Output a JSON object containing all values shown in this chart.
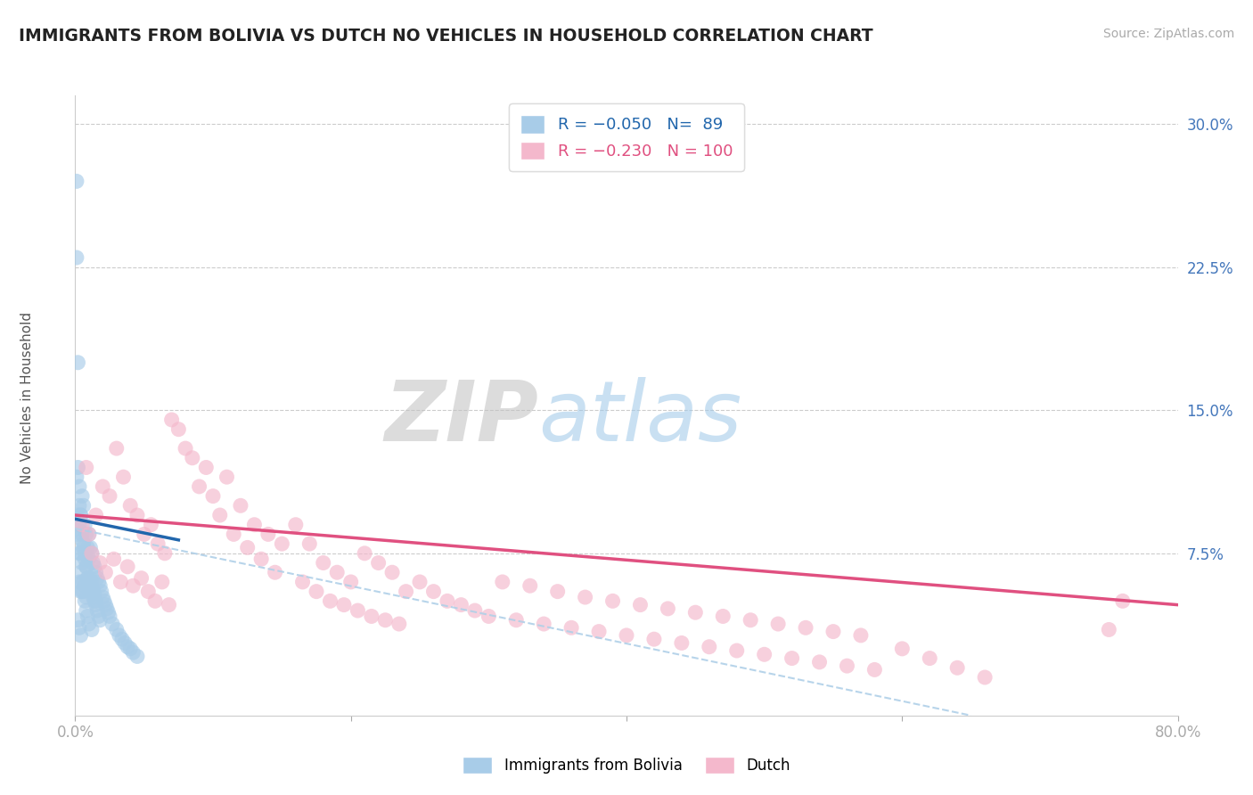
{
  "title": "IMMIGRANTS FROM BOLIVIA VS DUTCH NO VEHICLES IN HOUSEHOLD CORRELATION CHART",
  "source_text": "Source: ZipAtlas.com",
  "ylabel_label": "No Vehicles in Household",
  "ytick_labels": [
    "30.0%",
    "22.5%",
    "15.0%",
    "7.5%"
  ],
  "ytick_values": [
    0.3,
    0.225,
    0.15,
    0.075
  ],
  "xmin": 0.0,
  "xmax": 0.8,
  "ymin": -0.01,
  "ymax": 0.315,
  "legend_r1": "R = −0.050",
  "legend_n1": "N=  89",
  "legend_r2": "R = −0.230",
  "legend_n2": "N = 100",
  "color_blue": "#a8cce8",
  "color_pink": "#f4b8cc",
  "color_blue_line": "#2166ac",
  "color_pink_line": "#e05080",
  "color_blue_dashed": "#b0d0e8",
  "watermark_zip": "ZIP",
  "watermark_atlas": "atlas",
  "bolivia_x": [
    0.001,
    0.002,
    0.002,
    0.003,
    0.003,
    0.003,
    0.004,
    0.004,
    0.004,
    0.005,
    0.005,
    0.005,
    0.005,
    0.006,
    0.006,
    0.006,
    0.007,
    0.007,
    0.007,
    0.008,
    0.008,
    0.008,
    0.009,
    0.009,
    0.01,
    0.01,
    0.01,
    0.011,
    0.011,
    0.012,
    0.012,
    0.013,
    0.013,
    0.014,
    0.014,
    0.015,
    0.015,
    0.016,
    0.017,
    0.018,
    0.019,
    0.02,
    0.021,
    0.022,
    0.023,
    0.024,
    0.025,
    0.027,
    0.03,
    0.032,
    0.034,
    0.036,
    0.038,
    0.04,
    0.042,
    0.045,
    0.001,
    0.002,
    0.003,
    0.004,
    0.005,
    0.006,
    0.007,
    0.008,
    0.009,
    0.01,
    0.011,
    0.012,
    0.013,
    0.014,
    0.015,
    0.016,
    0.017,
    0.018,
    0.002,
    0.003,
    0.004,
    0.001,
    0.001,
    0.002,
    0.003,
    0.004,
    0.005,
    0.006,
    0.007,
    0.008,
    0.009,
    0.01,
    0.012
  ],
  "bolivia_y": [
    0.27,
    0.175,
    0.085,
    0.1,
    0.09,
    0.06,
    0.095,
    0.075,
    0.055,
    0.105,
    0.085,
    0.07,
    0.055,
    0.1,
    0.08,
    0.06,
    0.09,
    0.075,
    0.058,
    0.085,
    0.068,
    0.052,
    0.078,
    0.062,
    0.085,
    0.072,
    0.058,
    0.078,
    0.062,
    0.075,
    0.06,
    0.07,
    0.056,
    0.068,
    0.054,
    0.065,
    0.05,
    0.062,
    0.06,
    0.058,
    0.055,
    0.052,
    0.05,
    0.048,
    0.046,
    0.044,
    0.042,
    0.038,
    0.035,
    0.032,
    0.03,
    0.028,
    0.026,
    0.025,
    0.023,
    0.021,
    0.23,
    0.12,
    0.11,
    0.095,
    0.082,
    0.078,
    0.072,
    0.068,
    0.062,
    0.06,
    0.058,
    0.055,
    0.052,
    0.05,
    0.048,
    0.045,
    0.042,
    0.04,
    0.04,
    0.036,
    0.032,
    0.115,
    0.095,
    0.088,
    0.075,
    0.065,
    0.06,
    0.055,
    0.05,
    0.045,
    0.042,
    0.038,
    0.035
  ],
  "dutch_x": [
    0.005,
    0.008,
    0.01,
    0.012,
    0.015,
    0.018,
    0.02,
    0.022,
    0.025,
    0.028,
    0.03,
    0.033,
    0.035,
    0.038,
    0.04,
    0.042,
    0.045,
    0.048,
    0.05,
    0.053,
    0.055,
    0.058,
    0.06,
    0.063,
    0.065,
    0.068,
    0.07,
    0.075,
    0.08,
    0.085,
    0.09,
    0.095,
    0.1,
    0.105,
    0.11,
    0.115,
    0.12,
    0.125,
    0.13,
    0.135,
    0.14,
    0.145,
    0.15,
    0.16,
    0.165,
    0.17,
    0.175,
    0.18,
    0.185,
    0.19,
    0.195,
    0.2,
    0.205,
    0.21,
    0.215,
    0.22,
    0.225,
    0.23,
    0.235,
    0.24,
    0.25,
    0.26,
    0.27,
    0.28,
    0.29,
    0.3,
    0.31,
    0.32,
    0.33,
    0.34,
    0.35,
    0.36,
    0.37,
    0.38,
    0.39,
    0.4,
    0.41,
    0.42,
    0.43,
    0.44,
    0.45,
    0.46,
    0.47,
    0.48,
    0.49,
    0.5,
    0.51,
    0.52,
    0.53,
    0.54,
    0.55,
    0.56,
    0.57,
    0.58,
    0.6,
    0.62,
    0.64,
    0.66,
    0.75,
    0.76
  ],
  "dutch_y": [
    0.09,
    0.12,
    0.085,
    0.075,
    0.095,
    0.07,
    0.11,
    0.065,
    0.105,
    0.072,
    0.13,
    0.06,
    0.115,
    0.068,
    0.1,
    0.058,
    0.095,
    0.062,
    0.085,
    0.055,
    0.09,
    0.05,
    0.08,
    0.06,
    0.075,
    0.048,
    0.145,
    0.14,
    0.13,
    0.125,
    0.11,
    0.12,
    0.105,
    0.095,
    0.115,
    0.085,
    0.1,
    0.078,
    0.09,
    0.072,
    0.085,
    0.065,
    0.08,
    0.09,
    0.06,
    0.08,
    0.055,
    0.07,
    0.05,
    0.065,
    0.048,
    0.06,
    0.045,
    0.075,
    0.042,
    0.07,
    0.04,
    0.065,
    0.038,
    0.055,
    0.06,
    0.055,
    0.05,
    0.048,
    0.045,
    0.042,
    0.06,
    0.04,
    0.058,
    0.038,
    0.055,
    0.036,
    0.052,
    0.034,
    0.05,
    0.032,
    0.048,
    0.03,
    0.046,
    0.028,
    0.044,
    0.026,
    0.042,
    0.024,
    0.04,
    0.022,
    0.038,
    0.02,
    0.036,
    0.018,
    0.034,
    0.016,
    0.032,
    0.014,
    0.025,
    0.02,
    0.015,
    0.01,
    0.035,
    0.05
  ],
  "blue_line_x0": 0.0,
  "blue_line_x1": 0.075,
  "blue_line_y0": 0.093,
  "blue_line_y1": 0.082,
  "pink_line_x0": 0.0,
  "pink_line_x1": 0.8,
  "pink_line_y0": 0.095,
  "pink_line_y1": 0.048,
  "dashed_line_x0": 0.0,
  "dashed_line_x1": 0.65,
  "dashed_line_y0": 0.088,
  "dashed_line_y1": -0.01
}
